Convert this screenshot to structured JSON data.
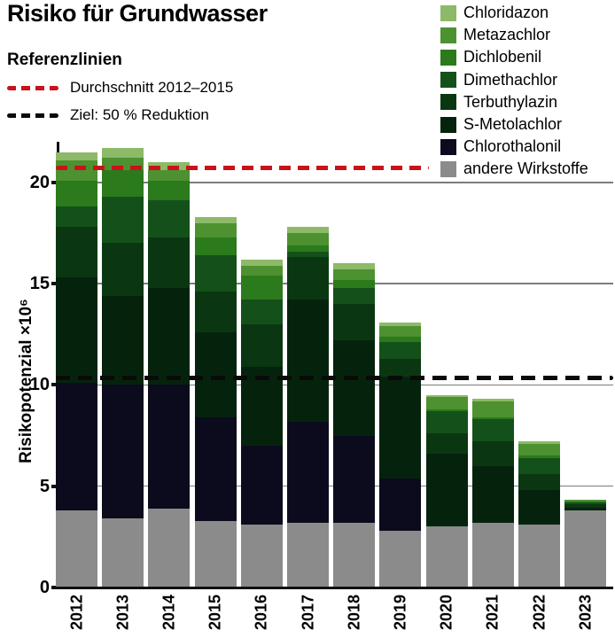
{
  "title": "Risiko für Grundwasser",
  "ref_legend": {
    "title": "Referenzlinien",
    "items": [
      {
        "label": "Durchschnitt 2012–2015",
        "color": "#c8131a",
        "value": 20.7
      },
      {
        "label": "Ziel: 50 % Reduktion",
        "color": "#0a0a0a",
        "value": 10.35
      }
    ]
  },
  "legend": {
    "items": [
      {
        "label": "Chloridazon",
        "color": "#8cba68"
      },
      {
        "label": "Metazachlor",
        "color": "#4e9130"
      },
      {
        "label": "Dichlobenil",
        "color": "#2b7a1c"
      },
      {
        "label": "Dimethachlor",
        "color": "#14511a"
      },
      {
        "label": "Terbuthylazin",
        "color": "#0a3712"
      },
      {
        "label": "S-Metolachlor",
        "color": "#05230c"
      },
      {
        "label": "Chlorothalonil",
        "color": "#0b0b1d"
      },
      {
        "label": "andere Wirkstoffe",
        "color": "#8b8b8b"
      }
    ]
  },
  "chart_data": {
    "type": "bar",
    "stacked": true,
    "title": "Risiko für Grundwasser",
    "xlabel": "",
    "ylabel": "Risikopotenzial ×10⁶",
    "categories": [
      "2012",
      "2013",
      "2014",
      "2015",
      "2016",
      "2017",
      "2018",
      "2019",
      "2020",
      "2021",
      "2022",
      "2023"
    ],
    "yticks": [
      0,
      5,
      10,
      15,
      20
    ],
    "ylim": [
      0,
      22
    ],
    "grid": "horizontal",
    "legend_position": "top-right",
    "series": [
      {
        "name": "andere Wirkstoffe",
        "color": "#8b8b8b",
        "values": [
          3.8,
          3.4,
          3.9,
          3.3,
          3.1,
          3.2,
          3.2,
          2.8,
          3.0,
          3.2,
          3.1,
          3.8
        ]
      },
      {
        "name": "Chlorothalonil",
        "color": "#0b0b1d",
        "values": [
          6.3,
          6.6,
          6.1,
          5.1,
          3.9,
          5.0,
          4.3,
          2.6,
          0,
          0,
          0,
          0
        ]
      },
      {
        "name": "S-Metolachlor",
        "color": "#05230c",
        "values": [
          5.2,
          4.4,
          4.8,
          4.2,
          3.9,
          6.0,
          4.7,
          5.0,
          3.6,
          2.8,
          1.7,
          0.15
        ]
      },
      {
        "name": "Terbuthylazin",
        "color": "#0a3712",
        "values": [
          2.5,
          2.6,
          2.5,
          2.0,
          2.1,
          2.1,
          1.8,
          0.9,
          1.0,
          1.2,
          0.8,
          0.15
        ]
      },
      {
        "name": "Dimethachlor",
        "color": "#14511a",
        "values": [
          1.0,
          2.3,
          1.8,
          1.8,
          1.2,
          0.3,
          0.8,
          0.8,
          1.1,
          1.1,
          0.8,
          0.1
        ]
      },
      {
        "name": "Dichlobenil",
        "color": "#2b7a1c",
        "values": [
          1.3,
          1.3,
          1.0,
          0.9,
          1.2,
          0.3,
          0.4,
          0.3,
          0.1,
          0.1,
          0.1,
          0.05
        ]
      },
      {
        "name": "Metazachlor",
        "color": "#4e9130",
        "values": [
          1.0,
          0.6,
          0.5,
          0.7,
          0.5,
          0.6,
          0.5,
          0.5,
          0.6,
          0.8,
          0.6,
          0.1
        ]
      },
      {
        "name": "Chloridazon",
        "color": "#8cba68",
        "values": [
          0.4,
          0.5,
          0.4,
          0.3,
          0.3,
          0.3,
          0.3,
          0.2,
          0.1,
          0.1,
          0.1,
          0.0
        ]
      }
    ],
    "totals": [
      21.5,
      21.7,
      21.0,
      18.3,
      16.2,
      17.8,
      16.0,
      13.1,
      9.5,
      9.3,
      7.2,
      4.35
    ],
    "reference_lines": [
      {
        "label": "Durchschnitt 2012–2015",
        "value": 20.7,
        "style": "dashed",
        "color": "#c8131a"
      },
      {
        "label": "Ziel: 50 % Reduktion",
        "value": 10.35,
        "style": "dashed",
        "color": "#0a0a0a"
      }
    ]
  }
}
